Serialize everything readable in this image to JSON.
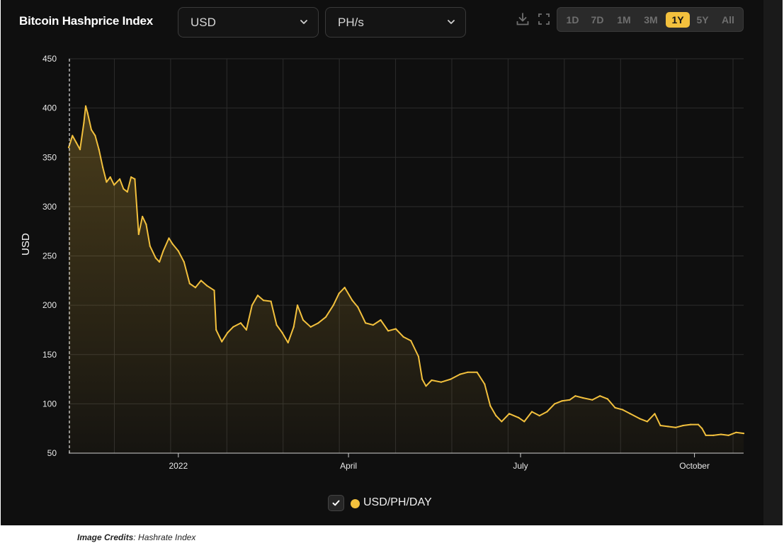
{
  "header": {
    "title": "Bitcoin Hashprice Index",
    "currency_select": "USD",
    "unit_select": "PH/s"
  },
  "toolbar": {
    "download_icon": "download-icon",
    "fullscreen_icon": "fullscreen-icon",
    "ranges": [
      "1D",
      "7D",
      "1M",
      "3M",
      "1Y",
      "5Y",
      "All"
    ],
    "active_range": "1Y"
  },
  "legend": {
    "label": "USD/PH/DAY",
    "checked": true
  },
  "credits": {
    "label": "Image Credits",
    "source": "Hashrate Index"
  },
  "colors": {
    "accent": "#f2c03d",
    "background": "#0f0f0f",
    "grid": "#2c2c2c"
  },
  "chart_data": {
    "type": "area",
    "title": "",
    "ylabel": "USD",
    "xlabel": "",
    "ylim": [
      50,
      450
    ],
    "yticks": [
      50,
      100,
      150,
      200,
      250,
      300,
      350,
      400,
      450
    ],
    "xlim": [
      "2021-11-04",
      "2022-10-27"
    ],
    "xticks": [
      {
        "date": "2022-01-01",
        "label": "2022"
      },
      {
        "date": "2022-04-01",
        "label": "April"
      },
      {
        "date": "2022-07-01",
        "label": "July"
      },
      {
        "date": "2022-10-01",
        "label": "October"
      }
    ],
    "grid": true,
    "series": [
      {
        "name": "USD/PH/DAY",
        "points": [
          [
            "2021-11-04",
            360
          ],
          [
            "2021-11-06",
            372
          ],
          [
            "2021-11-08",
            365
          ],
          [
            "2021-11-10",
            358
          ],
          [
            "2021-11-12",
            385
          ],
          [
            "2021-11-13",
            402
          ],
          [
            "2021-11-14",
            395
          ],
          [
            "2021-11-16",
            378
          ],
          [
            "2021-11-18",
            372
          ],
          [
            "2021-11-20",
            358
          ],
          [
            "2021-11-22",
            340
          ],
          [
            "2021-11-24",
            325
          ],
          [
            "2021-11-26",
            330
          ],
          [
            "2021-11-28",
            322
          ],
          [
            "2021-12-01",
            328
          ],
          [
            "2021-12-03",
            318
          ],
          [
            "2021-12-05",
            315
          ],
          [
            "2021-12-07",
            330
          ],
          [
            "2021-12-09",
            328
          ],
          [
            "2021-12-11",
            272
          ],
          [
            "2021-12-13",
            290
          ],
          [
            "2021-12-15",
            282
          ],
          [
            "2021-12-17",
            260
          ],
          [
            "2021-12-20",
            248
          ],
          [
            "2021-12-22",
            244
          ],
          [
            "2021-12-24",
            255
          ],
          [
            "2021-12-27",
            268
          ],
          [
            "2021-12-29",
            262
          ],
          [
            "2022-01-01",
            255
          ],
          [
            "2022-01-04",
            244
          ],
          [
            "2022-01-07",
            222
          ],
          [
            "2022-01-10",
            218
          ],
          [
            "2022-01-13",
            225
          ],
          [
            "2022-01-16",
            220
          ],
          [
            "2022-01-20",
            215
          ],
          [
            "2022-01-21",
            175
          ],
          [
            "2022-01-24",
            163
          ],
          [
            "2022-01-27",
            172
          ],
          [
            "2022-01-30",
            178
          ],
          [
            "2022-02-03",
            182
          ],
          [
            "2022-02-06",
            175
          ],
          [
            "2022-02-09",
            200
          ],
          [
            "2022-02-12",
            210
          ],
          [
            "2022-02-15",
            205
          ],
          [
            "2022-02-19",
            204
          ],
          [
            "2022-02-22",
            180
          ],
          [
            "2022-02-25",
            172
          ],
          [
            "2022-02-28",
            162
          ],
          [
            "2022-03-03",
            178
          ],
          [
            "2022-03-05",
            200
          ],
          [
            "2022-03-08",
            185
          ],
          [
            "2022-03-12",
            178
          ],
          [
            "2022-03-16",
            182
          ],
          [
            "2022-03-20",
            188
          ],
          [
            "2022-03-24",
            200
          ],
          [
            "2022-03-27",
            212
          ],
          [
            "2022-03-30",
            218
          ],
          [
            "2022-04-03",
            205
          ],
          [
            "2022-04-06",
            198
          ],
          [
            "2022-04-10",
            182
          ],
          [
            "2022-04-14",
            180
          ],
          [
            "2022-04-18",
            185
          ],
          [
            "2022-04-22",
            174
          ],
          [
            "2022-04-26",
            176
          ],
          [
            "2022-04-30",
            168
          ],
          [
            "2022-05-04",
            164
          ],
          [
            "2022-05-08",
            148
          ],
          [
            "2022-05-10",
            125
          ],
          [
            "2022-05-12",
            118
          ],
          [
            "2022-05-15",
            124
          ],
          [
            "2022-05-20",
            122
          ],
          [
            "2022-05-25",
            125
          ],
          [
            "2022-05-30",
            130
          ],
          [
            "2022-06-03",
            132
          ],
          [
            "2022-06-08",
            132
          ],
          [
            "2022-06-12",
            120
          ],
          [
            "2022-06-15",
            98
          ],
          [
            "2022-06-18",
            88
          ],
          [
            "2022-06-21",
            82
          ],
          [
            "2022-06-25",
            90
          ],
          [
            "2022-06-30",
            86
          ],
          [
            "2022-07-03",
            82
          ],
          [
            "2022-07-07",
            92
          ],
          [
            "2022-07-11",
            88
          ],
          [
            "2022-07-15",
            92
          ],
          [
            "2022-07-19",
            100
          ],
          [
            "2022-07-23",
            103
          ],
          [
            "2022-07-27",
            104
          ],
          [
            "2022-07-30",
            108
          ],
          [
            "2022-08-03",
            106
          ],
          [
            "2022-08-08",
            104
          ],
          [
            "2022-08-12",
            108
          ],
          [
            "2022-08-16",
            105
          ],
          [
            "2022-08-20",
            96
          ],
          [
            "2022-08-24",
            94
          ],
          [
            "2022-08-28",
            90
          ],
          [
            "2022-09-02",
            85
          ],
          [
            "2022-09-06",
            82
          ],
          [
            "2022-09-10",
            90
          ],
          [
            "2022-09-13",
            78
          ],
          [
            "2022-09-17",
            77
          ],
          [
            "2022-09-21",
            76
          ],
          [
            "2022-09-25",
            78
          ],
          [
            "2022-09-29",
            79
          ],
          [
            "2022-10-03",
            79
          ],
          [
            "2022-10-05",
            75
          ],
          [
            "2022-10-07",
            68
          ],
          [
            "2022-10-11",
            68
          ],
          [
            "2022-10-15",
            69
          ],
          [
            "2022-10-19",
            68
          ],
          [
            "2022-10-23",
            71
          ],
          [
            "2022-10-27",
            70
          ]
        ]
      }
    ]
  }
}
